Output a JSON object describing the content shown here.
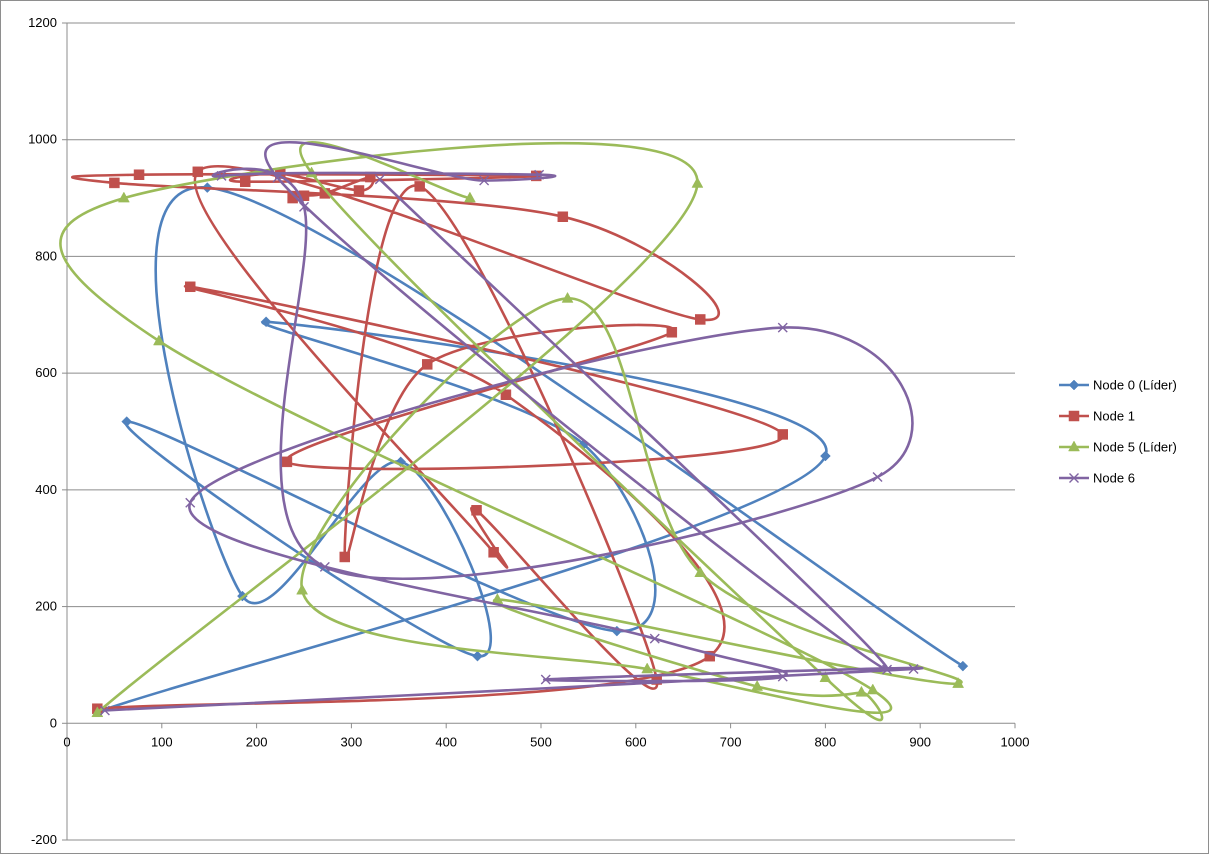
{
  "chart_data": {
    "type": "scatter",
    "title": "",
    "xlabel": "",
    "ylabel": "",
    "xlim": [
      0,
      1000
    ],
    "ylim": [
      -200,
      1200
    ],
    "x_ticks": [
      0,
      100,
      200,
      300,
      400,
      500,
      600,
      700,
      800,
      900,
      1000
    ],
    "y_ticks": [
      -200,
      0,
      200,
      400,
      600,
      800,
      1000,
      1200
    ],
    "grid": "horizontal major gridlines",
    "smooth_lines": true,
    "legend_position": "right",
    "series": [
      {
        "name": "Node 0 (Líder)",
        "color": "#4f81bd",
        "marker": "diamond",
        "points": [
          [
            33,
            20
          ],
          [
            800,
            458
          ],
          [
            210,
            688
          ],
          [
            545,
            478
          ],
          [
            580,
            158
          ],
          [
            63,
            517
          ],
          [
            433,
            115
          ],
          [
            352,
            448
          ],
          [
            185,
            218
          ],
          [
            148,
            918
          ],
          [
            945,
            98
          ]
        ]
      },
      {
        "name": "Node 1",
        "color": "#c0504d",
        "marker": "square",
        "points": [
          [
            32,
            25
          ],
          [
            678,
            115
          ],
          [
            463,
            563
          ],
          [
            130,
            748
          ],
          [
            755,
            495
          ],
          [
            232,
            448
          ],
          [
            638,
            670
          ],
          [
            380,
            615
          ],
          [
            293,
            285
          ],
          [
            372,
            920
          ],
          [
            622,
            75
          ],
          [
            432,
            365
          ],
          [
            450,
            293
          ],
          [
            138,
            945
          ],
          [
            668,
            692
          ],
          [
            523,
            868
          ],
          [
            50,
            926
          ],
          [
            76,
            940
          ],
          [
            495,
            938
          ],
          [
            188,
            928
          ],
          [
            225,
            942
          ],
          [
            308,
            913
          ],
          [
            320,
            936
          ],
          [
            272,
            908
          ],
          [
            250,
            904
          ],
          [
            238,
            900
          ]
        ]
      },
      {
        "name": "Node 5 (Líder)",
        "color": "#9bbb59",
        "marker": "triangle",
        "points": [
          [
            32,
            18
          ],
          [
            665,
            925
          ],
          [
            60,
            900
          ],
          [
            97,
            655
          ],
          [
            850,
            57
          ],
          [
            612,
            93
          ],
          [
            248,
            228
          ],
          [
            528,
            728
          ],
          [
            668,
            258
          ],
          [
            940,
            68
          ],
          [
            454,
            212
          ],
          [
            728,
            63
          ],
          [
            838,
            53
          ],
          [
            800,
            78
          ],
          [
            258,
            943
          ],
          [
            425,
            900
          ]
        ]
      },
      {
        "name": "Node 6",
        "color": "#8064a2",
        "marker": "x",
        "points": [
          [
            40,
            22
          ],
          [
            893,
            93
          ],
          [
            505,
            75
          ],
          [
            755,
            80
          ],
          [
            620,
            145
          ],
          [
            130,
            378
          ],
          [
            755,
            678
          ],
          [
            855,
            422
          ],
          [
            272,
            268
          ],
          [
            250,
            885
          ],
          [
            163,
            938
          ],
          [
            498,
            940
          ],
          [
            440,
            930
          ],
          [
            222,
            935
          ],
          [
            865,
            92
          ],
          [
            330,
            932
          ]
        ]
      }
    ]
  }
}
